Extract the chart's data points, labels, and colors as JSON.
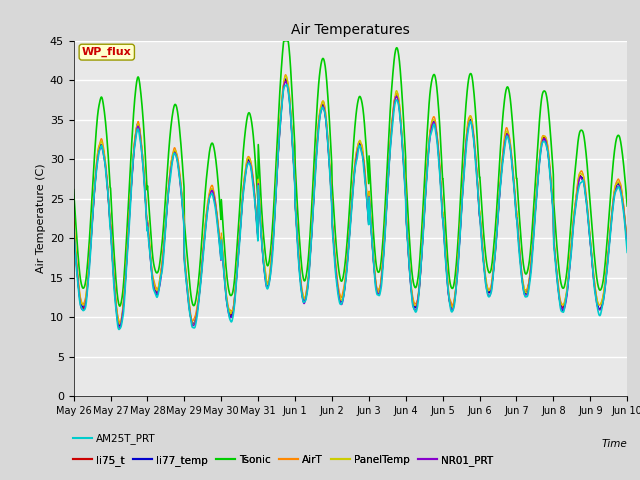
{
  "title": "Air Temperatures",
  "ylabel": "Air Temperature (C)",
  "xlabel": "Time",
  "ylim": [
    0,
    45
  ],
  "yticks": [
    0,
    5,
    10,
    15,
    20,
    25,
    30,
    35,
    40,
    45
  ],
  "date_labels": [
    "May 26",
    "May 27",
    "May 28",
    "May 29",
    "May 30",
    "May 31",
    "Jun 1",
    "Jun 2",
    "Jun 3",
    "Jun 4",
    "Jun 5",
    "Jun 6",
    "Jun 7",
    "Jun 8",
    "Jun 9",
    "Jun 10"
  ],
  "series_order": [
    "li75_t",
    "li77_temp",
    "Tsonic",
    "AirT",
    "PanelTemp",
    "NR01_PRT",
    "AM25T_PRT"
  ],
  "series": {
    "li75_t": {
      "color": "#cc0000",
      "lw": 1.0
    },
    "li77_temp": {
      "color": "#0000cc",
      "lw": 1.0
    },
    "Tsonic": {
      "color": "#00cc00",
      "lw": 1.2
    },
    "AirT": {
      "color": "#ff8800",
      "lw": 1.0
    },
    "PanelTemp": {
      "color": "#cccc00",
      "lw": 1.0
    },
    "NR01_PRT": {
      "color": "#8800cc",
      "lw": 1.0
    },
    "AM25T_PRT": {
      "color": "#00cccc",
      "lw": 1.2
    }
  },
  "wp_flux_box": {
    "text": "WP_flux",
    "text_color": "#cc0000",
    "box_color": "#ffffcc",
    "edge_color": "#999900"
  },
  "fig_bg_color": "#d8d8d8",
  "plot_bg_color": "#e8e8e8",
  "n_days": 15,
  "points_per_day": 96,
  "seed": 12345
}
